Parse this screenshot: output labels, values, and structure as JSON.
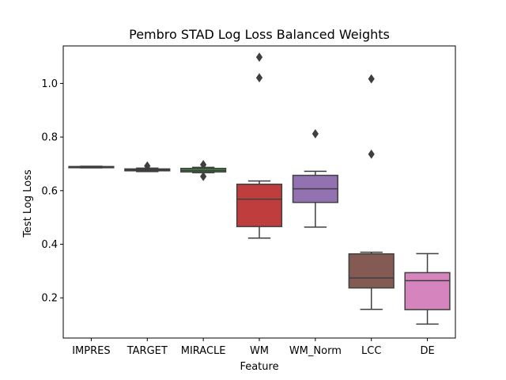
{
  "chart_data": {
    "type": "box",
    "title": "Pembro STAD Log Loss Balanced Weights",
    "xlabel": "Feature",
    "ylabel": "Test Log Loss",
    "ylim": [
      0.05,
      1.14
    ],
    "yticks": [
      0.2,
      0.4,
      0.6,
      0.8,
      1.0
    ],
    "ytick_labels": [
      "0.2",
      "0.4",
      "0.6",
      "0.8",
      "1.0"
    ],
    "grid": false,
    "series": [
      {
        "category": "IMPRES",
        "color": "#3274a1",
        "whisker_low": 0.685,
        "q1": 0.686,
        "median": 0.688,
        "q3": 0.69,
        "whisker_high": 0.691,
        "outliers": []
      },
      {
        "category": "TARGET",
        "color": "#e1812c",
        "whisker_low": 0.671,
        "q1": 0.674,
        "median": 0.677,
        "q3": 0.681,
        "whisker_high": 0.684,
        "outliers": [
          0.692
        ]
      },
      {
        "category": "MIRACLE",
        "color": "#3a923a",
        "whisker_low": 0.667,
        "q1": 0.67,
        "median": 0.675,
        "q3": 0.683,
        "whisker_high": 0.687,
        "outliers": [
          0.653,
          0.697
        ]
      },
      {
        "category": "WM",
        "color": "#c03d3e",
        "whisker_low": 0.423,
        "q1": 0.466,
        "median": 0.568,
        "q3": 0.624,
        "whisker_high": 0.636,
        "outliers": [
          1.021,
          1.098
        ]
      },
      {
        "category": "WM_Norm",
        "color": "#9372b2",
        "whisker_low": 0.464,
        "q1": 0.556,
        "median": 0.607,
        "q3": 0.657,
        "whisker_high": 0.672,
        "outliers": [
          0.812
        ]
      },
      {
        "category": "LCC",
        "color": "#845b53",
        "whisker_low": 0.157,
        "q1": 0.237,
        "median": 0.274,
        "q3": 0.364,
        "whisker_high": 0.37,
        "outliers": [
          0.736,
          1.017
        ]
      },
      {
        "category": "DE",
        "color": "#d684bd",
        "whisker_low": 0.102,
        "q1": 0.156,
        "median": 0.264,
        "q3": 0.294,
        "whisker_high": 0.365,
        "outliers": []
      }
    ]
  }
}
